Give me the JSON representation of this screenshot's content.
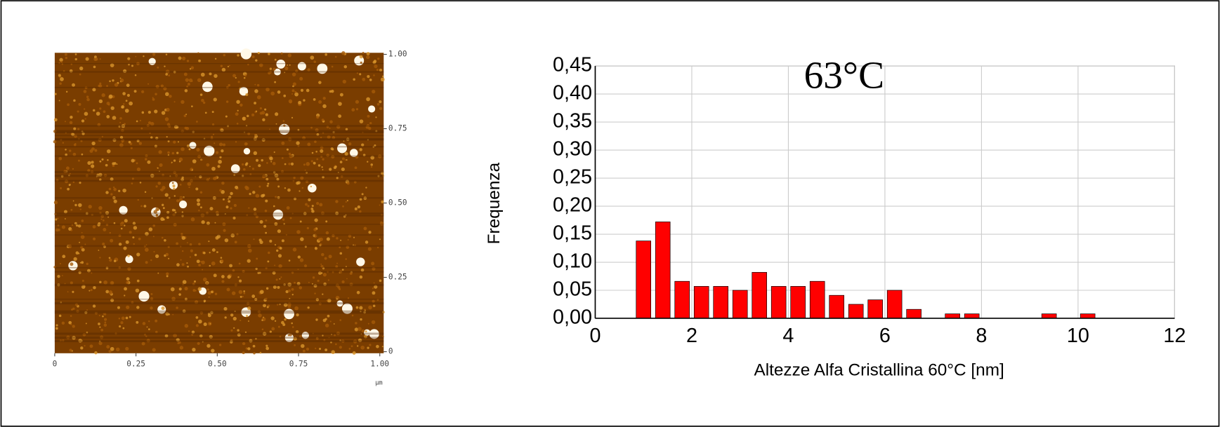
{
  "chart_data": [
    {
      "type": "image",
      "x_unit": "μm",
      "xlim": [
        0,
        1
      ],
      "ylim": [
        0,
        1
      ],
      "xticks": [
        0,
        0.25,
        {
          "value": 0.5,
          "label": "0.50"
        },
        0.75,
        {
          "value": 1,
          "label": "1.00"
        }
      ],
      "yticks": [
        0,
        0.25,
        {
          "value": 0.5,
          "label": "0.50"
        },
        0.75,
        {
          "value": 1,
          "label": "1.00"
        }
      ]
    },
    {
      "type": "histogram",
      "annotation": "63°C",
      "x_label": "Altezze Alfa Cristallina 60°C [nm]",
      "y_label": "Frequenza",
      "bins": [
        0.8,
        1.2,
        1.6,
        2.0,
        2.4,
        2.8,
        3.2,
        3.6,
        4.0,
        4.4,
        4.8,
        5.2,
        5.6,
        6.0,
        6.4,
        6.8,
        7.2,
        7.6,
        8.0,
        8.4,
        8.8,
        9.2,
        9.6,
        10.0,
        10.4
      ],
      "counts": [
        0.138,
        0.172,
        0.066,
        0.057,
        0.057,
        0.05,
        0.082,
        0.057,
        0.057,
        0.066,
        0.041,
        0.025,
        0.033,
        0.05,
        0.016,
        0,
        0.008,
        0.008,
        0,
        0,
        0,
        0.008,
        0,
        0.008
      ],
      "color": "#ff0000",
      "grid": true,
      "xlim": [
        0,
        12
      ],
      "ylim": [
        0,
        0.45
      ],
      "xticks": [
        0,
        2,
        4,
        6,
        8,
        10,
        12
      ],
      "yticks": [
        {
          "value": 0,
          "label": "0,00"
        },
        {
          "value": 0.05,
          "label": "0,05"
        },
        {
          "value": 0.1,
          "label": "0,10"
        },
        {
          "value": 0.15,
          "label": "0,15"
        },
        {
          "value": 0.2,
          "label": "0,20"
        },
        {
          "value": 0.25,
          "label": "0,25"
        },
        {
          "value": 0.3,
          "label": "0,30"
        },
        {
          "value": 0.35,
          "label": "0,35"
        },
        {
          "value": 0.4,
          "label": "0,40"
        },
        {
          "value": 0.45,
          "label": "0,45"
        }
      ]
    }
  ]
}
